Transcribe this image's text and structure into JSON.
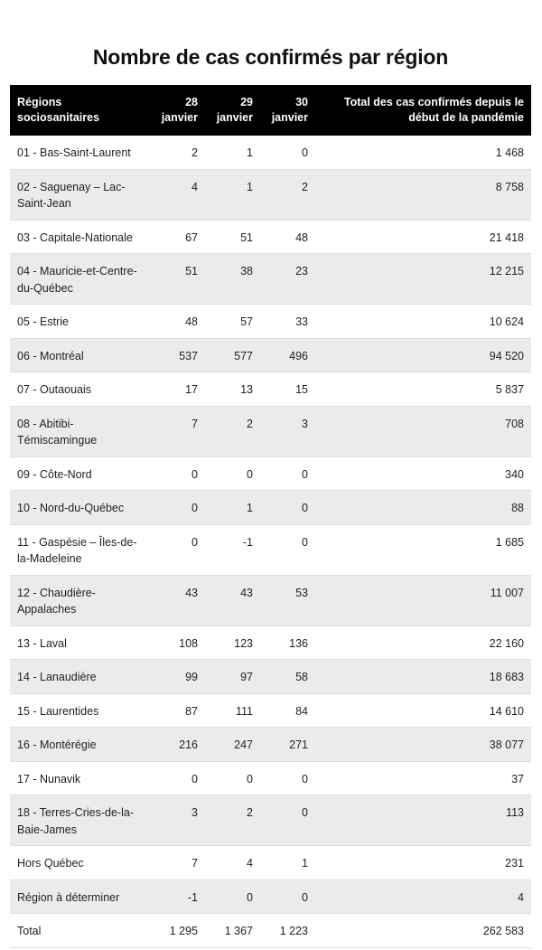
{
  "title": "Nombre de cas confirmés par région",
  "headers": {
    "region": "Régions sociosanitaires",
    "d28": "28 janvier",
    "d29": "29 janvier",
    "d30": "30 janvier",
    "total": "Total des cas confirmés depuis le début de la pandémie"
  },
  "rows": [
    {
      "region": "01 - Bas-Saint-Laurent",
      "d28": "2",
      "d29": "1",
      "d30": "0",
      "total": "1 468"
    },
    {
      "region": "02 - Saguenay – Lac-Saint-Jean",
      "d28": "4",
      "d29": "1",
      "d30": "2",
      "total": "8 758"
    },
    {
      "region": "03 - Capitale-Nationale",
      "d28": "67",
      "d29": "51",
      "d30": "48",
      "total": "21 418"
    },
    {
      "region": "04 - Mauricie-et-Centre-du-Québec",
      "d28": "51",
      "d29": "38",
      "d30": "23",
      "total": "12 215"
    },
    {
      "region": "05 - Estrie",
      "d28": "48",
      "d29": "57",
      "d30": "33",
      "total": "10 624"
    },
    {
      "region": "06 - Montréal",
      "d28": "537",
      "d29": "577",
      "d30": "496",
      "total": "94 520"
    },
    {
      "region": "07 - Outaouais",
      "d28": "17",
      "d29": "13",
      "d30": "15",
      "total": "5 837"
    },
    {
      "region": "08 - Abitibi-Témiscamingue",
      "d28": "7",
      "d29": "2",
      "d30": "3",
      "total": "708"
    },
    {
      "region": "09 - Côte-Nord",
      "d28": "0",
      "d29": "0",
      "d30": "0",
      "total": "340"
    },
    {
      "region": "10 - Nord-du-Québec",
      "d28": "0",
      "d29": "1",
      "d30": "0",
      "total": "88"
    },
    {
      "region": "11 - Gaspésie – Îles-de-la-Madeleine",
      "d28": "0",
      "d29": "-1",
      "d30": "0",
      "total": "1 685"
    },
    {
      "region": "12 - Chaudière-Appalaches",
      "d28": "43",
      "d29": "43",
      "d30": "53",
      "total": "11 007"
    },
    {
      "region": "13 - Laval",
      "d28": "108",
      "d29": "123",
      "d30": "136",
      "total": "22 160"
    },
    {
      "region": "14 - Lanaudière",
      "d28": "99",
      "d29": "97",
      "d30": "58",
      "total": "18 683"
    },
    {
      "region": "15 - Laurentides",
      "d28": "87",
      "d29": "111",
      "d30": "84",
      "total": "14 610"
    },
    {
      "region": "16 - Montérégie",
      "d28": "216",
      "d29": "247",
      "d30": "271",
      "total": "38 077"
    },
    {
      "region": "17 - Nunavik",
      "d28": "0",
      "d29": "0",
      "d30": "0",
      "total": "37"
    },
    {
      "region": "18 - Terres-Cries-de-la-Baie-James",
      "d28": "3",
      "d29": "2",
      "d30": "0",
      "total": "113"
    },
    {
      "region": "Hors Québec",
      "d28": "7",
      "d29": "4",
      "d30": "1",
      "total": "231"
    },
    {
      "region": "Région à déterminer",
      "d28": "-1",
      "d29": "0",
      "d30": "0",
      "total": "4"
    },
    {
      "region": "Total",
      "d28": "1 295",
      "d29": "1 367",
      "d30": "1 223",
      "total": "262 583"
    }
  ]
}
